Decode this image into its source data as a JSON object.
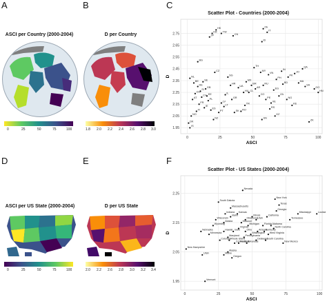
{
  "panels": {
    "A": {
      "letter": "A",
      "title": "ASCI per Country (2000-2004)",
      "ticks": [
        "0",
        "25",
        "50",
        "75",
        "100"
      ]
    },
    "B": {
      "letter": "B",
      "title": "D per Country",
      "ticks": [
        "1.8",
        "2.0",
        "2.2",
        "2.4",
        "2.6",
        "2.8",
        "3.0"
      ]
    },
    "D": {
      "letter": "D",
      "title": "ASCI per US State (2000-2004)",
      "ticks": [
        "0",
        "25",
        "50",
        "75",
        "100"
      ]
    },
    "E": {
      "letter": "E",
      "title": "D per US State",
      "ticks": [
        "2.0",
        "2.2",
        "2.6",
        "2.8",
        "3.0",
        "3.2",
        "3.4"
      ]
    },
    "C": {
      "letter": "C"
    },
    "F": {
      "letter": "F"
    }
  },
  "colors": {
    "viridis": [
      "#440154",
      "#3b528b",
      "#21918c",
      "#5ec962",
      "#fde725"
    ],
    "inferno": [
      "#fcffa4",
      "#f98e09",
      "#bc3754",
      "#57106e",
      "#000004"
    ],
    "ocean": "#dfe8ef",
    "land_nodata": "#7f7f7f"
  },
  "chart_data": [
    {
      "type": "scatter",
      "title": "Scatter Plot - Countries (2000-2004)",
      "xlabel": "ASCI",
      "ylabel": "D",
      "xlim": [
        -5,
        103
      ],
      "ylim": [
        1.9,
        2.87
      ],
      "xticks": [
        0,
        25,
        50,
        75,
        100
      ],
      "yticks": [
        1.95,
        2.05,
        2.15,
        2.25,
        2.35,
        2.45,
        2.55,
        2.65,
        2.75
      ],
      "grid": true,
      "points": [
        {
          "label": "HK",
          "x": 22,
          "y": 2.78
        },
        {
          "label": "KR",
          "x": 19,
          "y": 2.75
        },
        {
          "label": "JP",
          "x": 17,
          "y": 2.72
        },
        {
          "label": "TW",
          "x": 26,
          "y": 2.75
        },
        {
          "label": "CN",
          "x": 35,
          "y": 2.73
        },
        {
          "label": "Ok",
          "x": 58,
          "y": 2.79
        },
        {
          "label": "IT",
          "x": 61,
          "y": 2.76
        },
        {
          "label": "ID",
          "x": 57,
          "y": 2.68
        },
        {
          "label": "BG",
          "x": 8,
          "y": 2.51
        },
        {
          "label": "CZ",
          "x": 21,
          "y": 2.42
        },
        {
          "label": "NL",
          "x": 2,
          "y": 2.37
        },
        {
          "label": "BE",
          "x": 5,
          "y": 2.33
        },
        {
          "label": "DE",
          "x": 8,
          "y": 2.3
        },
        {
          "label": "SE",
          "x": 12,
          "y": 2.34
        },
        {
          "label": "GB",
          "x": 14,
          "y": 2.28
        },
        {
          "label": "CH",
          "x": 6,
          "y": 2.24
        },
        {
          "label": "CV",
          "x": 11,
          "y": 2.21
        },
        {
          "label": "AT",
          "x": 4,
          "y": 2.19
        },
        {
          "label": "PL",
          "x": 16,
          "y": 2.18
        },
        {
          "label": "FR",
          "x": 9,
          "y": 2.15
        },
        {
          "label": "IE",
          "x": 13,
          "y": 2.12
        },
        {
          "label": "ES",
          "x": 18,
          "y": 2.1
        },
        {
          "label": "PT",
          "x": 24,
          "y": 2.08
        },
        {
          "label": "NO",
          "x": 3,
          "y": 2.05
        },
        {
          "label": "FI",
          "x": 7,
          "y": 2.09
        },
        {
          "label": "DK",
          "x": 1,
          "y": 1.99
        },
        {
          "label": "IS",
          "x": 2,
          "y": 1.95
        },
        {
          "label": "SG",
          "x": 31,
          "y": 2.38
        },
        {
          "label": "IL",
          "x": 29,
          "y": 2.23
        },
        {
          "label": "GR",
          "x": 34,
          "y": 2.19
        },
        {
          "label": "TR",
          "x": 44,
          "y": 2.14
        },
        {
          "label": "MX",
          "x": 45,
          "y": 2.34
        },
        {
          "label": "BR",
          "x": 49,
          "y": 2.31
        },
        {
          "label": "AR",
          "x": 52,
          "y": 2.28
        },
        {
          "label": "CL",
          "x": 47,
          "y": 2.25
        },
        {
          "label": "CO",
          "x": 55,
          "y": 2.22
        },
        {
          "label": "PE",
          "x": 60,
          "y": 2.19
        },
        {
          "label": "VE",
          "x": 64,
          "y": 2.16
        },
        {
          "label": "TH",
          "x": 51,
          "y": 2.46
        },
        {
          "label": "MY",
          "x": 56,
          "y": 2.42
        },
        {
          "label": "VN",
          "x": 62,
          "y": 2.4
        },
        {
          "label": "PH",
          "x": 68,
          "y": 2.36
        },
        {
          "label": "IN",
          "x": 72,
          "y": 2.43
        },
        {
          "label": "PK",
          "x": 77,
          "y": 2.38
        },
        {
          "label": "BD",
          "x": 73,
          "y": 2.32
        },
        {
          "label": "EG",
          "x": 66,
          "y": 2.27
        },
        {
          "label": "ZA",
          "x": 70,
          "y": 2.22
        },
        {
          "label": "NG",
          "x": 76,
          "y": 2.19
        },
        {
          "label": "KE",
          "x": 80,
          "y": 2.14
        },
        {
          "label": "RU",
          "x": 58,
          "y": 2.31
        },
        {
          "label": "UA",
          "x": 39,
          "y": 2.29
        },
        {
          "label": "RO",
          "x": 41,
          "y": 2.09
        },
        {
          "label": "HU",
          "x": 43,
          "y": 2.25
        },
        {
          "label": "MA",
          "x": 85,
          "y": 2.33
        },
        {
          "label": "SA",
          "x": 90,
          "y": 2.3
        },
        {
          "label": "GO",
          "x": 97,
          "y": 2.28
        },
        {
          "label": "HN",
          "x": 100,
          "y": 2.25
        },
        {
          "label": "QA",
          "x": 88,
          "y": 2.45
        },
        {
          "label": "ZK",
          "x": 93,
          "y": 2.0
        },
        {
          "label": "SN",
          "x": 57,
          "y": 2.02
        },
        {
          "label": "SK",
          "x": 36,
          "y": 2.08
        },
        {
          "label": "LT",
          "x": 28,
          "y": 2.13
        },
        {
          "label": "LV",
          "x": 26,
          "y": 2.16
        },
        {
          "label": "EE",
          "x": 15,
          "y": 2.22
        },
        {
          "label": "SI",
          "x": 10,
          "y": 2.26
        },
        {
          "label": "HR",
          "x": 33,
          "y": 2.31
        },
        {
          "label": "RS",
          "x": 63,
          "y": 2.11
        },
        {
          "label": "JO",
          "x": 82,
          "y": 2.41
        },
        {
          "label": "KZ",
          "x": 67,
          "y": 2.05
        },
        {
          "label": "NZ",
          "x": 20,
          "y": 2.02
        }
      ]
    },
    {
      "type": "scatter",
      "title": "Scatter Plot - US States (2000-2004)",
      "xlabel": "ASCI",
      "ylabel": "D",
      "xlim": [
        -3,
        102
      ],
      "ylim": [
        1.92,
        2.31
      ],
      "xticks": [
        0,
        25,
        50,
        75,
        100
      ],
      "yticks": [
        1.95,
        2.05,
        2.15,
        2.25
      ],
      "grid": true,
      "points": [
        {
          "label": "Nevada",
          "x": 43,
          "y": 2.26
        },
        {
          "label": "New York",
          "x": 67,
          "y": 2.23
        },
        {
          "label": "Texas",
          "x": 70,
          "y": 2.21
        },
        {
          "label": "South Dakota",
          "x": 25,
          "y": 2.22
        },
        {
          "label": "Massachusetts",
          "x": 34,
          "y": 2.2
        },
        {
          "label": "Georgia",
          "x": 68,
          "y": 2.19
        },
        {
          "label": "Mississippi",
          "x": 84,
          "y": 2.18
        },
        {
          "label": "Louisiana",
          "x": 98,
          "y": 2.18
        },
        {
          "label": "Indiana",
          "x": 30,
          "y": 2.18
        },
        {
          "label": "Idaho",
          "x": 34,
          "y": 2.17
        },
        {
          "label": "Kansas",
          "x": 39,
          "y": 2.18
        },
        {
          "label": "California",
          "x": 61,
          "y": 2.17
        },
        {
          "label": "Tennessee",
          "x": 78,
          "y": 2.16
        },
        {
          "label": "Illinois",
          "x": 50,
          "y": 2.17
        },
        {
          "label": "Utah",
          "x": 53,
          "y": 2.16
        },
        {
          "label": "Oklahoma",
          "x": 45,
          "y": 2.16
        },
        {
          "label": "Wisconsin",
          "x": 23,
          "y": 2.16
        },
        {
          "label": "Alaska",
          "x": 29,
          "y": 2.15
        },
        {
          "label": "Missouri",
          "x": 42,
          "y": 2.15
        },
        {
          "label": "Michigan",
          "x": 47,
          "y": 2.14
        },
        {
          "label": "Wyoming",
          "x": 21,
          "y": 2.14
        },
        {
          "label": "Florida",
          "x": 58,
          "y": 2.14
        },
        {
          "label": "Alabama",
          "x": 64,
          "y": 2.14
        },
        {
          "label": "North Carolina",
          "x": 66,
          "y": 2.13
        },
        {
          "label": "Nebraska",
          "x": 12,
          "y": 2.12
        },
        {
          "label": "Hawaii",
          "x": 29,
          "y": 2.12
        },
        {
          "label": "Iowa",
          "x": 36,
          "y": 2.12
        },
        {
          "label": "Virginia",
          "x": 40,
          "y": 2.13
        },
        {
          "label": "Ohio",
          "x": 45,
          "y": 2.12
        },
        {
          "label": "Minnesota",
          "x": 18,
          "y": 2.11
        },
        {
          "label": "Washington",
          "x": 49,
          "y": 2.11
        },
        {
          "label": "Arizona",
          "x": 54,
          "y": 2.12
        },
        {
          "label": "Pennsylvania",
          "x": 44,
          "y": 2.1
        },
        {
          "label": "West Virginia",
          "x": 62,
          "y": 2.11
        },
        {
          "label": "Kentucky",
          "x": 59,
          "y": 2.12
        },
        {
          "label": "Maryland",
          "x": 32,
          "y": 2.1
        },
        {
          "label": "Colorado",
          "x": 26,
          "y": 2.09
        },
        {
          "label": "Montana",
          "x": 40,
          "y": 2.08
        },
        {
          "label": "Delaware",
          "x": 53,
          "y": 2.09
        },
        {
          "label": "Connecticut",
          "x": 37,
          "y": 2.08
        },
        {
          "label": "Rhode Island",
          "x": 33,
          "y": 2.09
        },
        {
          "label": "South Carolina",
          "x": 60,
          "y": 2.09
        },
        {
          "label": "New Mexico",
          "x": 73,
          "y": 2.08
        },
        {
          "label": "Arkansas",
          "x": 46,
          "y": 2.08
        },
        {
          "label": "Oregon",
          "x": 35,
          "y": 2.03
        },
        {
          "label": "Maine",
          "x": 29,
          "y": 2.04
        },
        {
          "label": "Alaska",
          "x": 32,
          "y": 2.05
        },
        {
          "label": "New Hampshire",
          "x": 1,
          "y": 2.06
        },
        {
          "label": "Utah",
          "x": 13,
          "y": 2.04
        },
        {
          "label": "Vermont",
          "x": 15,
          "y": 1.95
        }
      ]
    }
  ]
}
